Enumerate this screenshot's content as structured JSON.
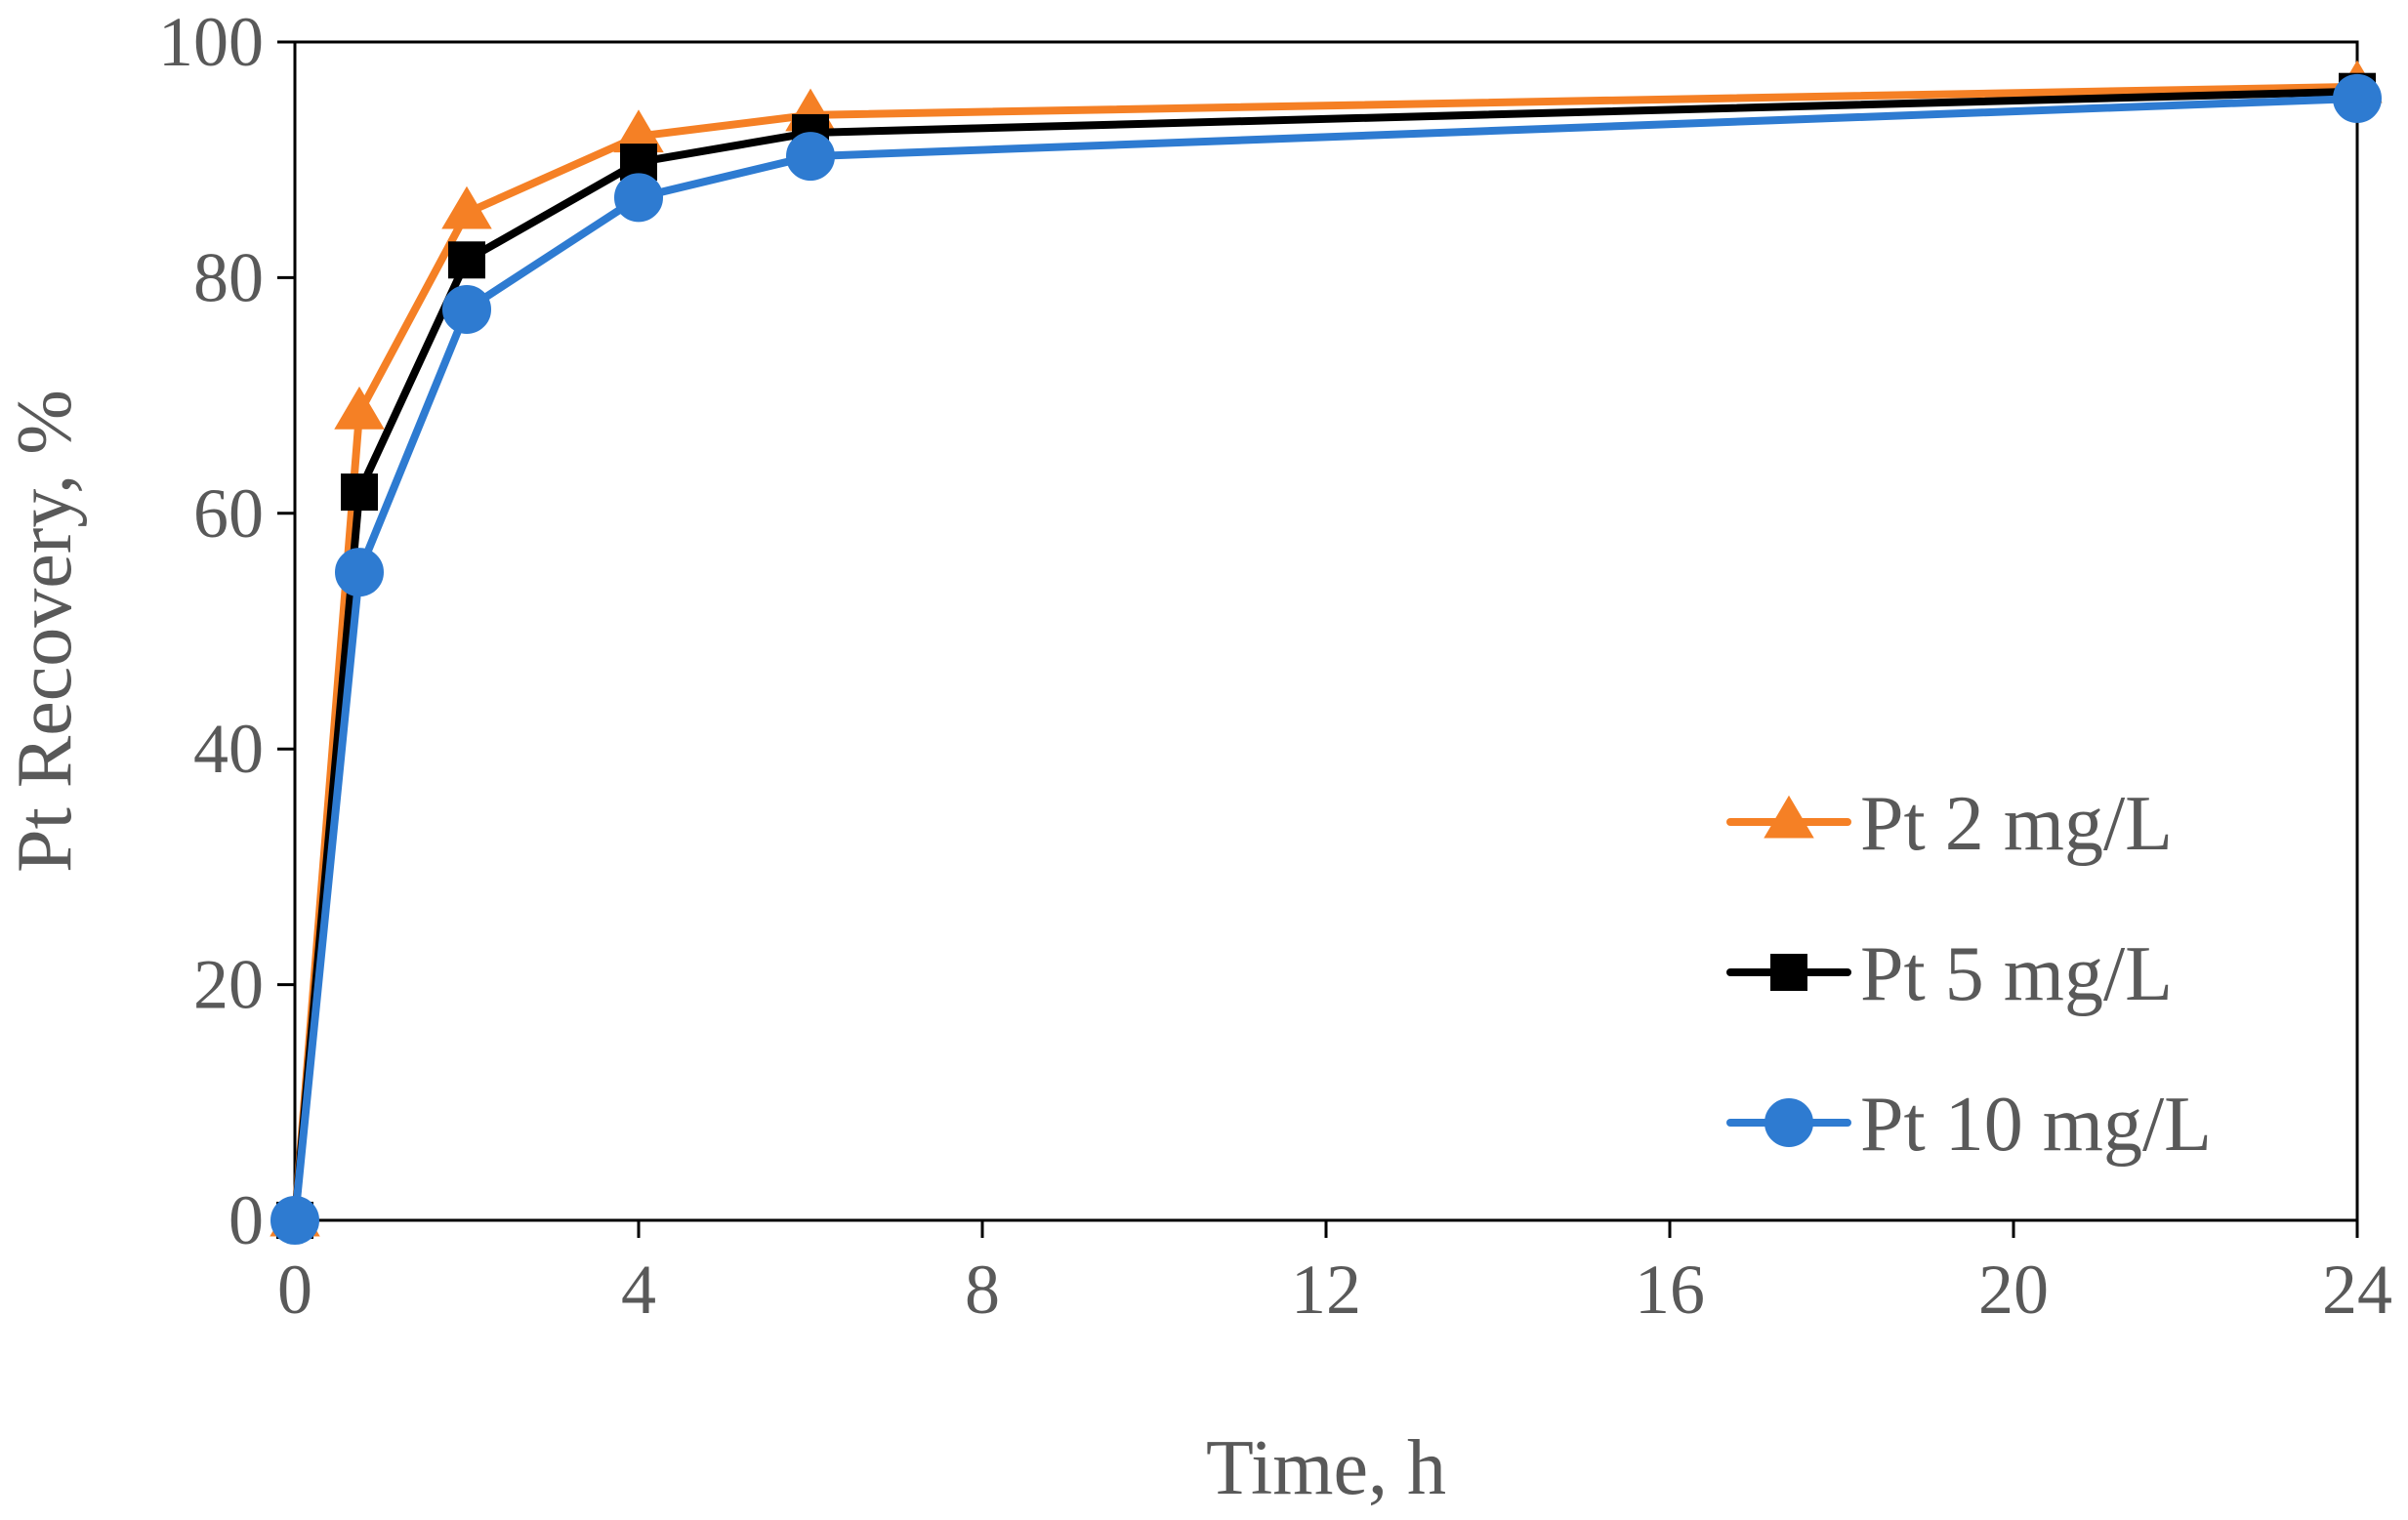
{
  "chart_data": {
    "type": "line",
    "title": "",
    "xlabel": "Time, h",
    "ylabel": "Pt Recovery,  %",
    "xlim": [
      0,
      24
    ],
    "ylim": [
      0,
      100
    ],
    "xticks": [
      0,
      4,
      8,
      12,
      16,
      20,
      24
    ],
    "yticks": [
      0,
      20,
      40,
      60,
      80,
      100
    ],
    "xtick_labels": [
      "0",
      "4",
      "8",
      "12",
      "16",
      "20",
      "24"
    ],
    "ytick_labels": [
      "0",
      "20",
      "40",
      "60",
      "80",
      "100"
    ],
    "grid": false,
    "legend_position": "right, lower-middle",
    "series": [
      {
        "name": "Pt 2 mg/L",
        "color": "#F58025",
        "marker": "triangle",
        "x": [
          0,
          0.75,
          2,
          4,
          6,
          24
        ],
        "y": [
          0,
          68.5,
          85.5,
          92,
          93.8,
          96.2
        ]
      },
      {
        "name": "Pt 5 mg/L",
        "color": "#000000",
        "marker": "square",
        "x": [
          0,
          0.75,
          2,
          4,
          6,
          24
        ],
        "y": [
          0,
          61.8,
          81.5,
          89.8,
          92.3,
          95.8
        ]
      },
      {
        "name": "Pt 10 mg/L",
        "color": "#2E7BD1",
        "marker": "circle",
        "x": [
          0,
          0.75,
          2,
          4,
          6,
          24
        ],
        "y": [
          0,
          55,
          77.3,
          86.8,
          90.3,
          95.2
        ]
      }
    ]
  }
}
